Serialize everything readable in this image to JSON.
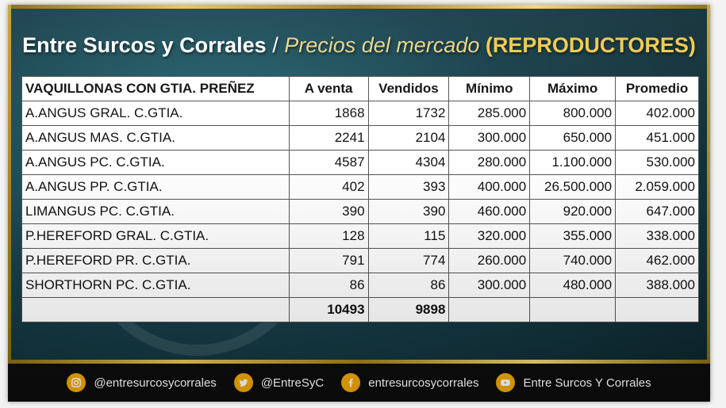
{
  "header": {
    "brand": "Entre Surcos y Corrales",
    "separator": "/",
    "subtitle": "Precios del mercado",
    "tag": "(REPRODUCTORES)"
  },
  "table": {
    "columns": [
      "VAQUILLONAS CON GTIA. PREÑEZ",
      "A venta",
      "Vendidos",
      "Mínimo",
      "Máximo",
      "Promedio"
    ],
    "rows": [
      [
        "A.ANGUS GRAL. C.GTIA.",
        "1868",
        "1732",
        "285.000",
        "800.000",
        "402.000"
      ],
      [
        "A.ANGUS MAS. C.GTIA.",
        "2241",
        "2104",
        "300.000",
        "650.000",
        "451.000"
      ],
      [
        "A.ANGUS PC. C.GTIA.",
        "4587",
        "4304",
        "280.000",
        "1.100.000",
        "530.000"
      ],
      [
        "A.ANGUS PP. C.GTIA.",
        "402",
        "393",
        "400.000",
        "26.500.000",
        "2.059.000"
      ],
      [
        "LIMANGUS PC. C.GTIA.",
        "390",
        "390",
        "460.000",
        "920.000",
        "647.000"
      ],
      [
        "P.HEREFORD GRAL. C.GTIA.",
        "128",
        "115",
        "320.000",
        "355.000",
        "338.000"
      ],
      [
        "P.HEREFORD PR. C.GTIA.",
        "791",
        "774",
        "260.000",
        "740.000",
        "462.000"
      ],
      [
        "SHORTHORN PC. C.GTIA.",
        "86",
        "86",
        "300.000",
        "480.000",
        "388.000"
      ]
    ],
    "totals": [
      "",
      "10493",
      "9898",
      "",
      "",
      ""
    ]
  },
  "footer": {
    "instagram": "@entresurcosycorrales",
    "twitter": "@EntreSyC",
    "facebook": "entresurcosycorrales",
    "youtube": "Entre Surcos Y Corrales"
  },
  "colors": {
    "accent_gold": "#f2c94c",
    "icon_bg": "#f2a900",
    "background": "#173f4a"
  },
  "icons": [
    "instagram-icon",
    "twitter-icon",
    "facebook-icon",
    "youtube-icon"
  ]
}
